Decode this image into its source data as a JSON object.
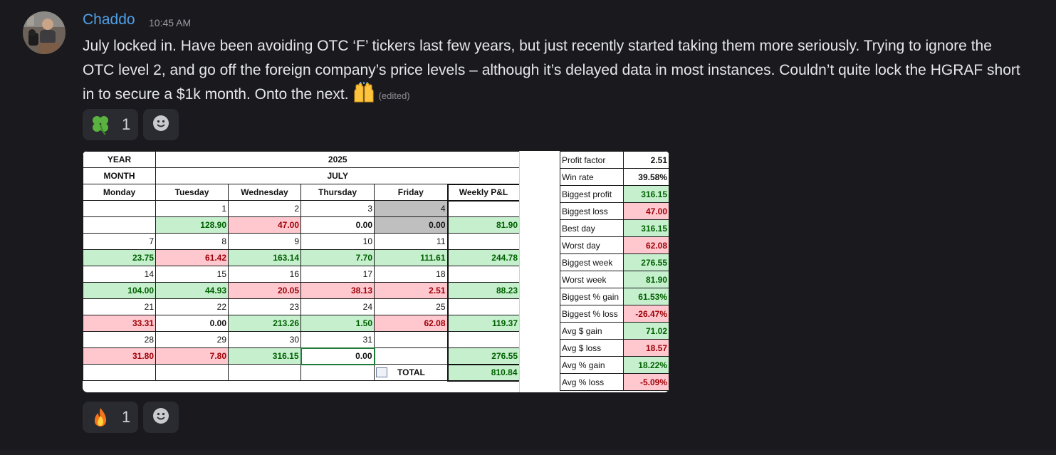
{
  "message": {
    "username": "Chaddo",
    "timestamp": "10:45 AM",
    "text": "July locked in. Have been avoiding OTC ‘F’ tickers last few years, but just recently started taking them more seriously. Trying to ignore the OTC level 2, and go off the foreign company’s price levels – although it’s delayed data in most instances. Couldn’t quite lock the HGRAF short in to secure a $1k month. Onto the next.",
    "edited_label": "(edited)",
    "trailing_emoji": "raising-hands"
  },
  "reactions_top": [
    {
      "emoji": "four-leaf-clover",
      "count": "1"
    }
  ],
  "reactions_bottom": [
    {
      "emoji": "fire",
      "count": "1"
    }
  ],
  "sheet": {
    "year_label": "YEAR",
    "year_value": "2025",
    "month_label": "MONTH",
    "month_value": "JULY",
    "day_headers": [
      "Monday",
      "Tuesday",
      "Wednesday",
      "Thursday",
      "Friday",
      "Weekly P&L"
    ],
    "weeks": [
      {
        "dates": [
          "",
          "1",
          "2",
          "3",
          "4",
          ""
        ],
        "values": [
          "",
          "128.90",
          "47.00",
          "0.00",
          "0.00",
          "81.90"
        ]
      },
      {
        "dates": [
          "7",
          "8",
          "9",
          "10",
          "11",
          ""
        ],
        "values": [
          "23.75",
          "61.42",
          "163.14",
          "7.70",
          "111.61",
          "244.78"
        ]
      },
      {
        "dates": [
          "14",
          "15",
          "16",
          "17",
          "18",
          ""
        ],
        "values": [
          "104.00",
          "44.93",
          "20.05",
          "38.13",
          "2.51",
          "88.23"
        ]
      },
      {
        "dates": [
          "21",
          "22",
          "23",
          "24",
          "25",
          ""
        ],
        "values": [
          "33.31",
          "0.00",
          "213.26",
          "1.50",
          "62.08",
          "119.37"
        ]
      },
      {
        "dates": [
          "28",
          "29",
          "30",
          "31",
          "",
          ""
        ],
        "values": [
          "31.80",
          "7.80",
          "316.15",
          "0.00",
          "",
          "276.55"
        ]
      }
    ],
    "total_label": "TOTAL",
    "total_value": "810.84",
    "stats": [
      {
        "label": "Profit factor",
        "value": "2.51"
      },
      {
        "label": "Win rate",
        "value": "39.58%"
      },
      {
        "label": "Biggest profit",
        "value": "316.15"
      },
      {
        "label": "Biggest loss",
        "value": "47.00"
      },
      {
        "label": "Best day",
        "value": "316.15"
      },
      {
        "label": "Worst day",
        "value": "62.08"
      },
      {
        "label": "Biggest week",
        "value": "276.55"
      },
      {
        "label": "Worst week",
        "value": "81.90"
      },
      {
        "label": "Biggest % gain",
        "value": "61.53%"
      },
      {
        "label": "Biggest % loss",
        "value": "-26.47%"
      },
      {
        "label": "Avg $ gain",
        "value": "71.02"
      },
      {
        "label": "Avg $ loss",
        "value": "18.57"
      },
      {
        "label": "Avg % gain",
        "value": "18.22%"
      },
      {
        "label": "Avg % loss",
        "value": "-5.09%"
      }
    ]
  },
  "colors": {
    "username": "#4fa0e8",
    "win_fill": "#c6efce",
    "win_text": "#006100",
    "loss_fill": "#ffc7ce",
    "loss_text": "#9c0006"
  }
}
